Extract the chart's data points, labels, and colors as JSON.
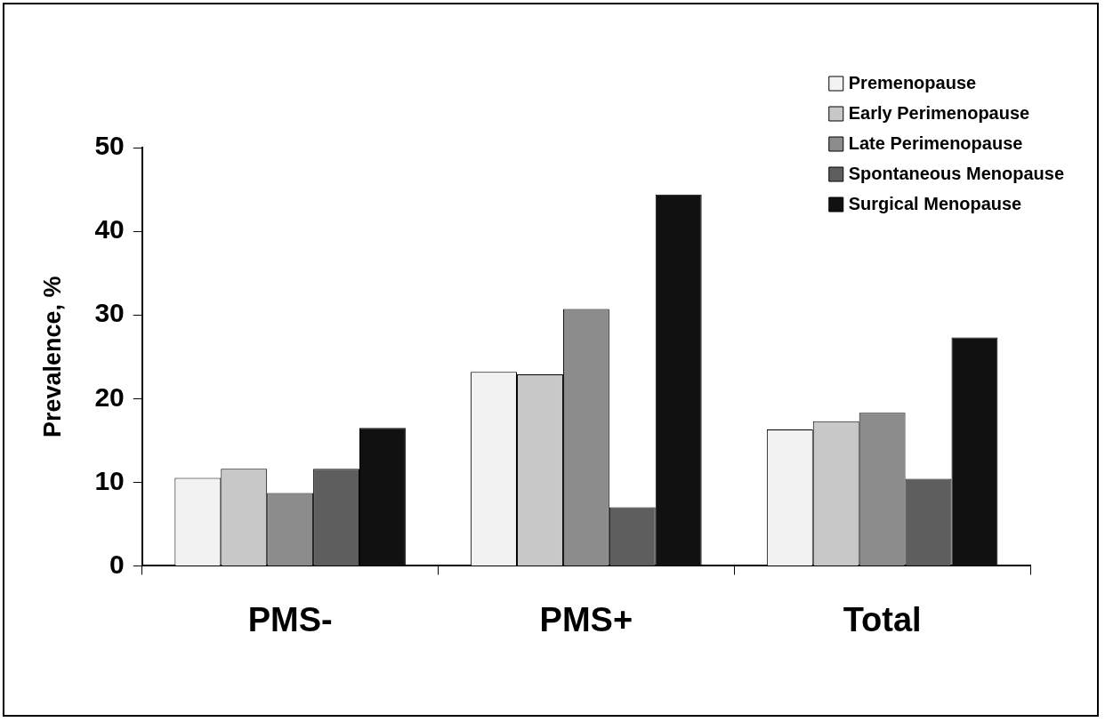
{
  "chart_data": {
    "type": "bar",
    "ylabel": "Prevalence, %",
    "categories": [
      "PMS-",
      "PMS+",
      "Total"
    ],
    "series": [
      {
        "name": "Premenopause",
        "color": "#f2f2f2",
        "values": [
          10.5,
          23.2,
          16.3
        ]
      },
      {
        "name": "Early Perimenopause",
        "color": "#c8c8c8",
        "values": [
          11.6,
          22.9,
          17.3
        ]
      },
      {
        "name": "Late Perimenopause",
        "color": "#8c8c8c",
        "values": [
          8.7,
          30.7,
          18.3
        ]
      },
      {
        "name": "Spontaneous Menopause",
        "color": "#5e5e5e",
        "values": [
          11.6,
          7.0,
          10.4
        ]
      },
      {
        "name": "Surgical Menopause",
        "color": "#111111",
        "values": [
          16.5,
          44.4,
          27.3
        ]
      }
    ],
    "ylim": [
      0,
      50
    ],
    "yticks": [
      0,
      10,
      20,
      30,
      40,
      50
    ],
    "legend": "top right"
  }
}
